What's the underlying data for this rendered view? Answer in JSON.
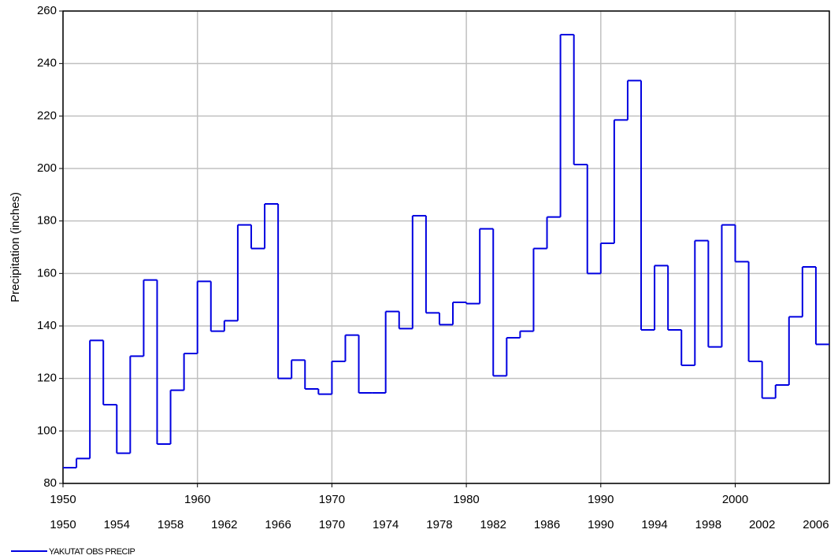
{
  "chart_data": {
    "type": "step",
    "ylabel": "Precipitation (inches)",
    "x": [
      1950,
      1951,
      1952,
      1953,
      1954,
      1955,
      1956,
      1957,
      1958,
      1959,
      1960,
      1961,
      1962,
      1963,
      1964,
      1965,
      1966,
      1967,
      1968,
      1969,
      1970,
      1971,
      1972,
      1973,
      1974,
      1975,
      1976,
      1977,
      1978,
      1979,
      1980,
      1981,
      1982,
      1983,
      1984,
      1985,
      1986,
      1987,
      1988,
      1989,
      1990,
      1991,
      1992,
      1993,
      1994,
      1995,
      1996,
      1997,
      1998,
      1999,
      2000,
      2001,
      2002,
      2003,
      2004,
      2005,
      2006
    ],
    "series": [
      {
        "name": "YAKUTAT OBS PRECIP",
        "color": "#0000e0",
        "values": [
          86,
          89.5,
          134.5,
          110,
          91.5,
          128.5,
          157.5,
          95,
          115.5,
          129.5,
          157,
          138,
          142,
          178.5,
          169.5,
          186.5,
          120,
          127,
          116,
          114,
          126.5,
          136.5,
          114.5,
          114.5,
          145.5,
          139,
          182,
          145,
          140.5,
          149,
          148.5,
          177,
          121,
          135.5,
          138,
          169.5,
          181.5,
          251,
          201.5,
          160,
          171.5,
          218.5,
          233.5,
          138.5,
          163,
          138.5,
          125,
          172.5,
          132,
          178.5,
          164.5,
          126.5,
          112.5,
          117.5,
          143.5,
          162.5,
          133
        ]
      }
    ],
    "xlim": [
      1950,
      2007
    ],
    "xticks": [
      1950,
      1960,
      1970,
      1980,
      1990,
      2000
    ],
    "xticks_lower": [
      1950,
      1954,
      1958,
      1962,
      1966,
      1970,
      1974,
      1978,
      1982,
      1986,
      1990,
      1994,
      1998,
      2002,
      2006
    ],
    "ylim": [
      80,
      260
    ],
    "yticks": [
      80,
      100,
      120,
      140,
      160,
      180,
      200,
      220,
      240,
      260
    ],
    "grid": true
  }
}
